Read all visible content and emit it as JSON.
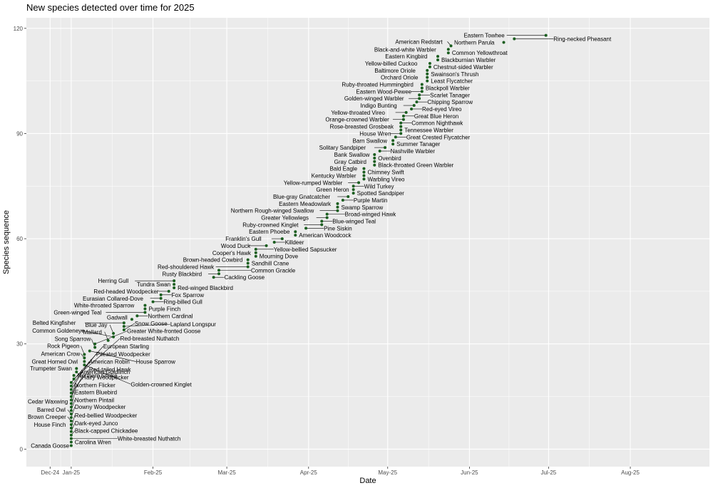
{
  "chart_data": {
    "type": "scatter",
    "title": "New species detected over time for 2025",
    "xlabel": "Date",
    "ylabel": "Species sequence",
    "xlim": [
      "2024-12-15",
      "2025-08-31"
    ],
    "ylim": [
      -5,
      123
    ],
    "x_ticks": [
      {
        "value": "2024-12-24",
        "label": "Dec-24"
      },
      {
        "value": "2025-01-01",
        "label": "Jan-25"
      },
      {
        "value": "2025-02-01",
        "label": "Feb-25"
      },
      {
        "value": "2025-03-01",
        "label": "Mar-25"
      },
      {
        "value": "2025-04-01",
        "label": "Apr-25"
      },
      {
        "value": "2025-05-01",
        "label": "May-25"
      },
      {
        "value": "2025-06-01",
        "label": "Jun-25"
      },
      {
        "value": "2025-07-01",
        "label": "Jul-25"
      },
      {
        "value": "2025-08-01",
        "label": "Aug-25"
      }
    ],
    "y_ticks": [
      0,
      30,
      60,
      90,
      120
    ],
    "grid": true,
    "point_color": "#1b5e20",
    "panel_color": "#ebebeb",
    "points": [
      {
        "x": "2025-01-01",
        "y": 1,
        "label": "Canada Goose"
      },
      {
        "x": "2025-01-01",
        "y": 2,
        "label": "Carolina Wren"
      },
      {
        "x": "2025-01-01",
        "y": 3,
        "label": "White-breasted Nuthatch"
      },
      {
        "x": "2025-01-01",
        "y": 4,
        "label": "Black-capped Chickadee"
      },
      {
        "x": "2025-01-01",
        "y": 5,
        "label": "Dark-eyed Junco"
      },
      {
        "x": "2025-01-01",
        "y": 6,
        "label": "Red-bellied Woodpecker"
      },
      {
        "x": "2025-01-01",
        "y": 7,
        "label": "House Finch"
      },
      {
        "x": "2025-01-01",
        "y": 8,
        "label": "Brown Creeper"
      },
      {
        "x": "2025-01-01",
        "y": 9,
        "label": "Downy Woodpecker"
      },
      {
        "x": "2025-01-01",
        "y": 10,
        "label": "Barred Owl"
      },
      {
        "x": "2025-01-01",
        "y": 11,
        "label": "Northern Pintail"
      },
      {
        "x": "2025-01-01",
        "y": 12,
        "label": "Eastern Bluebird"
      },
      {
        "x": "2025-01-01",
        "y": 13,
        "label": "Cedar Waxwing"
      },
      {
        "x": "2025-01-01",
        "y": 14,
        "label": "Northern Flicker"
      },
      {
        "x": "2025-01-01",
        "y": 15,
        "label": "Hairy Woodpecker"
      },
      {
        "x": "2025-01-01",
        "y": 16,
        "label": "Red-tailed Hawk"
      },
      {
        "x": "2025-01-01",
        "y": 17,
        "label": "American Robin"
      },
      {
        "x": "2025-01-01",
        "y": 18,
        "label": "Pileated Woodpecker"
      },
      {
        "x": "2025-01-01",
        "y": 19,
        "label": "European Starling"
      },
      {
        "x": "2025-01-02",
        "y": 20,
        "label": "Red-breasted Nuthatch"
      },
      {
        "x": "2025-01-02",
        "y": 21,
        "label": "Northern Shrike"
      },
      {
        "x": "2025-01-03",
        "y": 22,
        "label": "American Goldfinch"
      },
      {
        "x": "2025-01-03",
        "y": 23,
        "label": "Trumpeter Swan"
      },
      {
        "x": "2025-01-06",
        "y": 24,
        "label": "Golden-crowned Kinglet"
      },
      {
        "x": "2025-01-06",
        "y": 25,
        "label": "Great Horned Owl"
      },
      {
        "x": "2025-01-06",
        "y": 26,
        "label": "American Crow"
      },
      {
        "x": "2025-01-06",
        "y": 27,
        "label": "Rock Pigeon"
      },
      {
        "x": "2025-01-08",
        "y": 28,
        "label": "House Sparrow"
      },
      {
        "x": "2025-01-10",
        "y": 29,
        "label": "Song Sparrow"
      },
      {
        "x": "2025-01-10",
        "y": 30,
        "label": "Greater White-fronted Goose"
      },
      {
        "x": "2025-01-15",
        "y": 31,
        "label": "Mallard"
      },
      {
        "x": "2025-01-17",
        "y": 32,
        "label": "Common Goldeneye"
      },
      {
        "x": "2025-01-17",
        "y": 33,
        "label": "Blue Jay"
      },
      {
        "x": "2025-01-21",
        "y": 34,
        "label": "Snow Goose"
      },
      {
        "x": "2025-01-21",
        "y": 35,
        "label": "Lapland Longspur"
      },
      {
        "x": "2025-01-21",
        "y": 36,
        "label": "Belted Kingfisher"
      },
      {
        "x": "2025-01-24",
        "y": 37,
        "label": "Gadwall"
      },
      {
        "x": "2025-01-26",
        "y": 38,
        "label": "Northern Cardinal"
      },
      {
        "x": "2025-01-29",
        "y": 39,
        "label": "Green-winged Teal"
      },
      {
        "x": "2025-01-29",
        "y": 40,
        "label": "Purple Finch"
      },
      {
        "x": "2025-01-29",
        "y": 41,
        "label": "White-throated Sparrow"
      },
      {
        "x": "2025-02-01",
        "y": 42,
        "label": "Ring-billed Gull"
      },
      {
        "x": "2025-02-04",
        "y": 43,
        "label": "Eurasian Collared-Dove"
      },
      {
        "x": "2025-02-04",
        "y": 44,
        "label": "Fox Sparrow"
      },
      {
        "x": "2025-02-07",
        "y": 45,
        "label": "Red-headed Woodpecker"
      },
      {
        "x": "2025-02-09",
        "y": 46,
        "label": "Red-winged Blackbird"
      },
      {
        "x": "2025-02-09",
        "y": 47,
        "label": "Tundra Swan"
      },
      {
        "x": "2025-02-09",
        "y": 48,
        "label": "Herring Gull"
      },
      {
        "x": "2025-02-24",
        "y": 49,
        "label": "Cackling Goose"
      },
      {
        "x": "2025-02-26",
        "y": 50,
        "label": "Rusty Blackbird"
      },
      {
        "x": "2025-02-26",
        "y": 51,
        "label": "Common Grackle"
      },
      {
        "x": "2025-03-09",
        "y": 52,
        "label": "Red-shouldered Hawk"
      },
      {
        "x": "2025-03-09",
        "y": 53,
        "label": "Sandhill Crane"
      },
      {
        "x": "2025-03-09",
        "y": 54,
        "label": "Brown-headed Cowbird"
      },
      {
        "x": "2025-03-12",
        "y": 55,
        "label": "Mourning Dove"
      },
      {
        "x": "2025-03-12",
        "y": 56,
        "label": "Cooper's Hawk"
      },
      {
        "x": "2025-03-12",
        "y": 57,
        "label": "Yellow-bellied Sapsucker"
      },
      {
        "x": "2025-03-16",
        "y": 58,
        "label": "Wood Duck"
      },
      {
        "x": "2025-03-19",
        "y": 59,
        "label": "Killdeer"
      },
      {
        "x": "2025-03-22",
        "y": 60,
        "label": "Franklin's Gull"
      },
      {
        "x": "2025-03-27",
        "y": 61,
        "label": "American Woodcock"
      },
      {
        "x": "2025-03-27",
        "y": 62,
        "label": "Eastern Phoebe"
      },
      {
        "x": "2025-03-31",
        "y": 63,
        "label": "Pine Siskin"
      },
      {
        "x": "2025-04-06",
        "y": 64,
        "label": "Ruby-crowned Kinglet"
      },
      {
        "x": "2025-04-06",
        "y": 65,
        "label": "Blue-winged Teal"
      },
      {
        "x": "2025-04-08",
        "y": 66,
        "label": "Greater Yellowlegs"
      },
      {
        "x": "2025-04-08",
        "y": 67,
        "label": "Broad-winged Hawk"
      },
      {
        "x": "2025-04-12",
        "y": 68,
        "label": "Northern Rough-winged Swallow"
      },
      {
        "x": "2025-04-12",
        "y": 69,
        "label": "Swamp Sparrow"
      },
      {
        "x": "2025-04-12",
        "y": 70,
        "label": "Eastern Meadowlark"
      },
      {
        "x": "2025-04-14",
        "y": 71,
        "label": "Purple Martin"
      },
      {
        "x": "2025-04-16",
        "y": 72,
        "label": "Blue-gray Gnatcatcher"
      },
      {
        "x": "2025-04-18",
        "y": 73,
        "label": "Spotted Sandpiper"
      },
      {
        "x": "2025-04-18",
        "y": 74,
        "label": "Green Heron"
      },
      {
        "x": "2025-04-18",
        "y": 75,
        "label": "Wild Turkey"
      },
      {
        "x": "2025-04-20",
        "y": 76,
        "label": "Yellow-rumped Warbler"
      },
      {
        "x": "2025-04-22",
        "y": 77,
        "label": "Warbling Vireo"
      },
      {
        "x": "2025-04-22",
        "y": 78,
        "label": "Kentucky Warbler"
      },
      {
        "x": "2025-04-22",
        "y": 79,
        "label": "Chimney Swift"
      },
      {
        "x": "2025-04-22",
        "y": 80,
        "label": "Bald Eagle"
      },
      {
        "x": "2025-04-26",
        "y": 81,
        "label": "Black-throated Green Warbler"
      },
      {
        "x": "2025-04-26",
        "y": 82,
        "label": "Gray Catbird"
      },
      {
        "x": "2025-04-26",
        "y": 83,
        "label": "Ovenbird"
      },
      {
        "x": "2025-04-26",
        "y": 84,
        "label": "Bank Swallow"
      },
      {
        "x": "2025-04-28",
        "y": 85,
        "label": "Nashville Warbler"
      },
      {
        "x": "2025-04-30",
        "y": 86,
        "label": "Solitary Sandpiper"
      },
      {
        "x": "2025-05-03",
        "y": 87,
        "label": "Summer Tanager"
      },
      {
        "x": "2025-05-03",
        "y": 88,
        "label": "Barn Swallow"
      },
      {
        "x": "2025-05-04",
        "y": 89,
        "label": "Great Crested Flycatcher"
      },
      {
        "x": "2025-05-06",
        "y": 90,
        "label": "House Wren"
      },
      {
        "x": "2025-05-06",
        "y": 91,
        "label": "Tennessee Warbler"
      },
      {
        "x": "2025-05-06",
        "y": 92,
        "label": "Rose-breasted Grosbeak"
      },
      {
        "x": "2025-05-06",
        "y": 93,
        "label": "Common Nighthawk"
      },
      {
        "x": "2025-05-07",
        "y": 94,
        "label": "Orange-crowned Warbler"
      },
      {
        "x": "2025-05-07",
        "y": 95,
        "label": "Great Blue Heron"
      },
      {
        "x": "2025-05-08",
        "y": 96,
        "label": "Yellow-throated Vireo"
      },
      {
        "x": "2025-05-10",
        "y": 97,
        "label": "Red-eyed Vireo"
      },
      {
        "x": "2025-05-11",
        "y": 98,
        "label": "Indigo Bunting"
      },
      {
        "x": "2025-05-12",
        "y": 99,
        "label": "Chipping Sparrow"
      },
      {
        "x": "2025-05-13",
        "y": 100,
        "label": "Golden-winged Warbler"
      },
      {
        "x": "2025-05-13",
        "y": 101,
        "label": "Scarlet Tanager"
      },
      {
        "x": "2025-05-14",
        "y": 102,
        "label": "Eastern Wood-Pewee"
      },
      {
        "x": "2025-05-14",
        "y": 103,
        "label": "Blackpoll Warbler"
      },
      {
        "x": "2025-05-14",
        "y": 104,
        "label": "Ruby-throated Hummingbird"
      },
      {
        "x": "2025-05-16",
        "y": 105,
        "label": "Least Flycatcher"
      },
      {
        "x": "2025-05-16",
        "y": 106,
        "label": "Orchard Oriole"
      },
      {
        "x": "2025-05-16",
        "y": 107,
        "label": "Swainson's Thrush"
      },
      {
        "x": "2025-05-16",
        "y": 108,
        "label": "Baltimore Oriole"
      },
      {
        "x": "2025-05-17",
        "y": 109,
        "label": "Chestnut-sided Warbler"
      },
      {
        "x": "2025-05-17",
        "y": 110,
        "label": "Yellow-billed Cuckoo"
      },
      {
        "x": "2025-05-20",
        "y": 111,
        "label": "Blackburnian Warbler"
      },
      {
        "x": "2025-05-20",
        "y": 112,
        "label": "Eastern Kingbird"
      },
      {
        "x": "2025-05-24",
        "y": 113,
        "label": "Common Yellowthroat"
      },
      {
        "x": "2025-05-24",
        "y": 114,
        "label": "Black-and-white Warbler"
      },
      {
        "x": "2025-05-25",
        "y": 115,
        "label": "American Redstart"
      },
      {
        "x": "2025-06-14",
        "y": 116,
        "label": "Northern Parula"
      },
      {
        "x": "2025-06-18",
        "y": 117,
        "label": "Ring-necked Pheasant"
      },
      {
        "x": "2025-06-30",
        "y": 118,
        "label": "Eastern Towhee"
      }
    ]
  }
}
